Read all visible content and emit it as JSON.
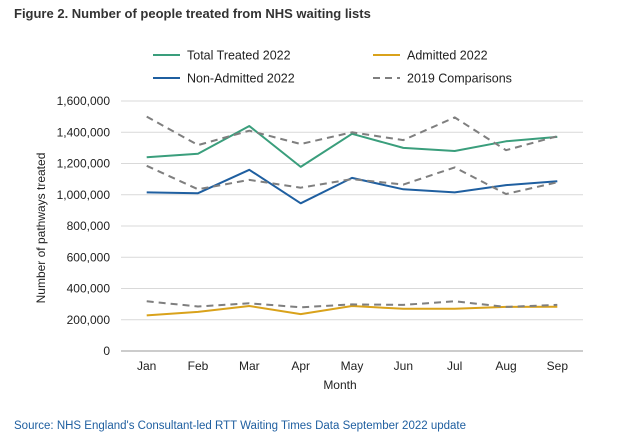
{
  "figure_title": "Figure 2. Number of people treated from NHS waiting lists",
  "source_note": "Source: NHS England's Consultant-led RTT Waiting Times Data September 2022 update",
  "chart_data": {
    "type": "line",
    "xlabel": "Month",
    "ylabel": "Number of pathways treated",
    "ylim": [
      0,
      1600000
    ],
    "yticks": [
      0,
      200000,
      400000,
      600000,
      800000,
      1000000,
      1200000,
      1400000,
      1600000
    ],
    "ytick_labels": [
      "0",
      "200,000",
      "400,000",
      "600,000",
      "800,000",
      "1,000,000",
      "1,200,000",
      "1,400,000",
      "1,600,000"
    ],
    "categories": [
      "Jan",
      "Feb",
      "Mar",
      "Apr",
      "May",
      "Jun",
      "Jul",
      "Aug",
      "Sep"
    ],
    "grid": true,
    "legend_position": "top",
    "legend": [
      {
        "label": "Total Treated 2022",
        "color": "#3a9e7c",
        "dash": false
      },
      {
        "label": "Admitted 2022",
        "color": "#d9a21b",
        "dash": false
      },
      {
        "label": "Non-Admitted 2022",
        "color": "#1f5fa0",
        "dash": false
      },
      {
        "label": "2019 Comparisons",
        "color": "#7f7f7f",
        "dash": true
      }
    ],
    "series": [
      {
        "name": "Total Treated 2022",
        "color": "#3a9e7c",
        "dash": false,
        "values": [
          1240000,
          1262000,
          1440000,
          1178000,
          1390000,
          1300000,
          1280000,
          1342000,
          1370000
        ]
      },
      {
        "name": "Admitted 2022",
        "color": "#d9a21b",
        "dash": false,
        "values": [
          228000,
          250000,
          288000,
          236000,
          288000,
          270000,
          270000,
          282000,
          283000
        ]
      },
      {
        "name": "Non-Admitted 2022",
        "color": "#1f5fa0",
        "dash": false,
        "values": [
          1015000,
          1010000,
          1160000,
          945000,
          1108000,
          1035000,
          1015000,
          1062000,
          1087000
        ]
      },
      {
        "name": "2019 Comparisons",
        "color": "#7f7f7f",
        "dash": true,
        "values": [
          1500000,
          1318000,
          1410000,
          1325000,
          1400000,
          1350000,
          1495000,
          1285000,
          1375000
        ]
      },
      {
        "name": "2019 Comparisons",
        "color": "#7f7f7f",
        "dash": true,
        "values": [
          1185000,
          1035000,
          1095000,
          1045000,
          1100000,
          1065000,
          1175000,
          1005000,
          1080000
        ]
      },
      {
        "name": "2019 Comparisons",
        "color": "#7f7f7f",
        "dash": true,
        "values": [
          318000,
          285000,
          305000,
          280000,
          298000,
          295000,
          318000,
          282000,
          295000
        ]
      }
    ]
  }
}
